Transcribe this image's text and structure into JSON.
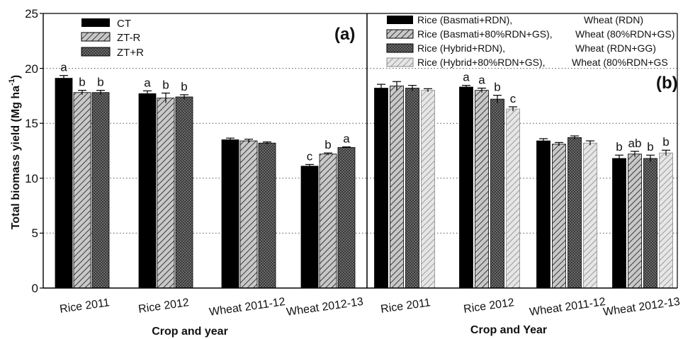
{
  "chart_data": [
    {
      "type": "bar",
      "panel_label": "(a)",
      "categories": [
        "Rice 2011",
        "Rice 2012",
        "Wheat 2011-12",
        "Wheat 2012-13"
      ],
      "series": [
        {
          "name": "CT",
          "values": [
            19.1,
            17.7,
            13.5,
            11.1
          ],
          "errors": [
            0.25,
            0.25,
            0.15,
            0.15
          ],
          "labels": [
            "a",
            "a",
            "",
            "c"
          ],
          "color": "#000000",
          "pattern": "solid"
        },
        {
          "name": "ZT-R",
          "values": [
            17.8,
            17.3,
            13.4,
            12.2
          ],
          "errors": [
            0.2,
            0.45,
            0.15,
            0.1
          ],
          "labels": [
            "b",
            "b",
            "",
            "b"
          ],
          "color": "#b8b8b8",
          "pattern": "diagonal"
        },
        {
          "name": "ZT+R",
          "values": [
            17.8,
            17.4,
            13.2,
            12.8
          ],
          "errors": [
            0.2,
            0.2,
            0.1,
            0.05
          ],
          "labels": [
            "b",
            "b",
            "",
            "a"
          ],
          "color": "#5a5a5a",
          "pattern": "crosshatch"
        }
      ],
      "xlabel": "Crop and year",
      "ylabel_main": "Total biomass yield (Mg ha",
      "ylabel_sup": "-1",
      "ylabel_close": ")",
      "ylim": [
        0,
        25
      ],
      "yticks": [
        "0",
        "5",
        "10",
        "15",
        "20",
        "25"
      ],
      "grid": "dotted horizontal at 5, 10, 15, 20",
      "legend_position": "top-left"
    },
    {
      "type": "bar",
      "panel_label": "(b)",
      "categories": [
        "Rice 2011",
        "Rice 2012",
        "Wheat 2011-12",
        "Wheat 2012-13"
      ],
      "series": [
        {
          "name": "Rice (Basmati+RDN),",
          "name2": "Wheat (RDN)",
          "values": [
            18.2,
            18.3,
            13.4,
            11.8
          ],
          "errors": [
            0.35,
            0.15,
            0.2,
            0.3
          ],
          "labels": [
            "",
            "a",
            "",
            "b"
          ],
          "color": "#000000",
          "pattern": "solid"
        },
        {
          "name": "Rice (Basmati+80%RDN+GS),",
          "name2": "Wheat (80%RDN+GS)",
          "values": [
            18.4,
            18.0,
            13.1,
            12.2
          ],
          "errors": [
            0.4,
            0.2,
            0.15,
            0.25
          ],
          "labels": [
            "",
            "a",
            "",
            "ab"
          ],
          "color": "#b8b8b8",
          "pattern": "diagonal"
        },
        {
          "name": "Rice (Hybrid+RDN),",
          "name2": "Wheat (RDN+GG)",
          "values": [
            18.2,
            17.2,
            13.7,
            11.8
          ],
          "errors": [
            0.25,
            0.35,
            0.15,
            0.3
          ],
          "labels": [
            "",
            "b",
            "",
            "b"
          ],
          "color": "#5a5a5a",
          "pattern": "crosshatch"
        },
        {
          "name": "Rice (Hybrid+80%RDN+GS),",
          "name2": "Wheat (80%RDN+GS",
          "values": [
            18.0,
            16.3,
            13.2,
            12.3
          ],
          "errors": [
            0.15,
            0.2,
            0.2,
            0.25
          ],
          "labels": [
            "",
            "c",
            "",
            "b"
          ],
          "color": "#d0d0d0",
          "pattern": "light-diagonal"
        }
      ],
      "xlabel": "Crop and Year",
      "ylim": [
        0,
        25
      ],
      "grid": "dotted horizontal at 5, 10, 15, 20",
      "legend_position": "top"
    }
  ]
}
